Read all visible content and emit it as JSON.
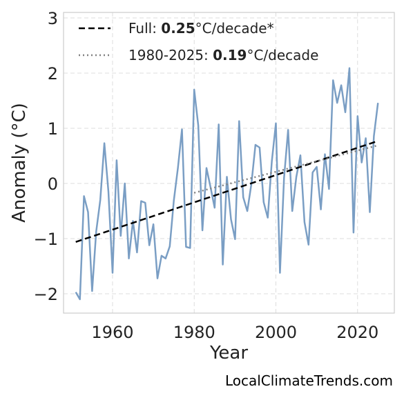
{
  "chart_data": {
    "type": "line",
    "xlabel": "Year",
    "ylabel": "Anomaly (°C)",
    "xlim": [
      1948,
      2029
    ],
    "ylim": [
      -2.35,
      3.1
    ],
    "xticks": [
      1960,
      1980,
      2000,
      2020
    ],
    "xtick_labels": [
      "1960",
      "1980",
      "2000",
      "2020"
    ],
    "yticks": [
      -2,
      -1,
      0,
      1,
      2,
      3
    ],
    "ytick_labels": [
      "−2",
      "−1",
      "0",
      "1",
      "2",
      "3"
    ],
    "grid": true,
    "legend_position": "top-left",
    "series": [
      {
        "kind": "data",
        "color": "#7a9ec4",
        "x": [
          1951,
          1952,
          1953,
          1954,
          1955,
          1956,
          1957,
          1958,
          1959,
          1960,
          1961,
          1962,
          1963,
          1964,
          1965,
          1966,
          1967,
          1968,
          1969,
          1970,
          1971,
          1972,
          1973,
          1974,
          1975,
          1976,
          1977,
          1978,
          1979,
          1980,
          1981,
          1982,
          1983,
          1984,
          1985,
          1986,
          1987,
          1988,
          1989,
          1990,
          1991,
          1992,
          1993,
          1994,
          1995,
          1996,
          1997,
          1998,
          1999,
          2000,
          2001,
          2002,
          2003,
          2004,
          2005,
          2006,
          2007,
          2008,
          2009,
          2010,
          2011,
          2012,
          2013,
          2014,
          2015,
          2016,
          2017,
          2018,
          2019,
          2020,
          2021,
          2022,
          2023,
          2024,
          2025
        ],
        "y": [
          -1.97,
          -2.1,
          -0.23,
          -0.52,
          -1.95,
          -0.87,
          -0.3,
          0.73,
          -0.15,
          -1.62,
          0.42,
          -0.95,
          0.0,
          -1.36,
          -0.68,
          -1.25,
          -0.32,
          -0.35,
          -1.12,
          -0.74,
          -1.72,
          -1.31,
          -1.36,
          -1.14,
          -0.31,
          0.28,
          0.98,
          -1.15,
          -1.17,
          1.7,
          1.05,
          -0.85,
          0.28,
          -0.07,
          -0.44,
          1.07,
          -1.47,
          0.12,
          -0.65,
          -1.01,
          1.13,
          -0.25,
          -0.5,
          -0.01,
          0.7,
          0.65,
          -0.34,
          -0.62,
          0.4,
          1.09,
          -1.62,
          0.1,
          0.97,
          -0.5,
          0.12,
          0.51,
          -0.7,
          -1.11,
          0.2,
          0.3,
          -0.47,
          0.53,
          -0.1,
          1.87,
          1.46,
          1.78,
          1.29,
          2.09,
          -0.89,
          1.22,
          0.38,
          0.82,
          -0.52,
          0.86,
          1.46
        ]
      },
      {
        "kind": "trend",
        "name": "Full",
        "color": "#000000",
        "dash": "dashed",
        "x": [
          1951,
          2025
        ],
        "y": [
          -1.06,
          0.77
        ]
      },
      {
        "kind": "trend",
        "name": "1980-2025",
        "color": "#808080",
        "dash": "dotted",
        "x": [
          1980,
          2025
        ],
        "y": [
          -0.17,
          0.69
        ]
      }
    ]
  },
  "legend": [
    {
      "prefix": "Full: ",
      "value": "0.25",
      "suffix": "°C/decade*"
    },
    {
      "prefix": "1980-2025: ",
      "value": "0.19",
      "suffix": "°C/decade"
    }
  ],
  "watermark": "LocalClimateTrends.com"
}
